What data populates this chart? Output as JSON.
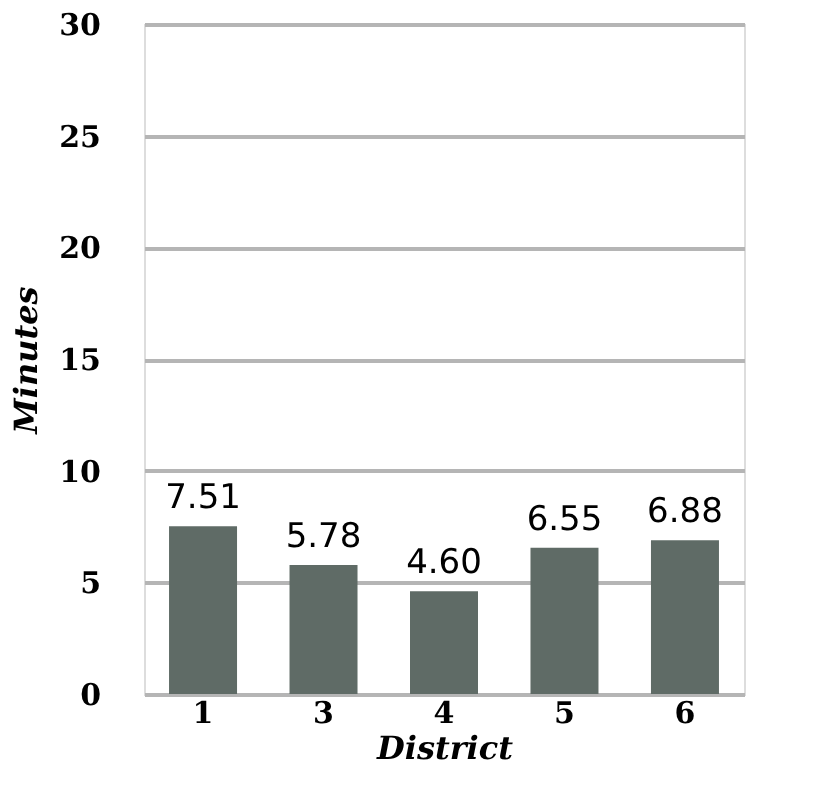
{
  "chart_data": {
    "type": "bar",
    "xlabel": "District",
    "ylabel": "Minutes",
    "categories": [
      "1",
      "3",
      "4",
      "5",
      "6"
    ],
    "values": [
      7.51,
      5.78,
      4.6,
      6.55,
      6.88
    ],
    "value_labels": [
      "7.51",
      "5.78",
      "4.60",
      "6.55",
      "6.88"
    ],
    "color": "#5f6b66",
    "ylim": [
      0,
      30
    ],
    "yticks": [
      0,
      5,
      10,
      15,
      20,
      25,
      30
    ],
    "grid": "y"
  }
}
